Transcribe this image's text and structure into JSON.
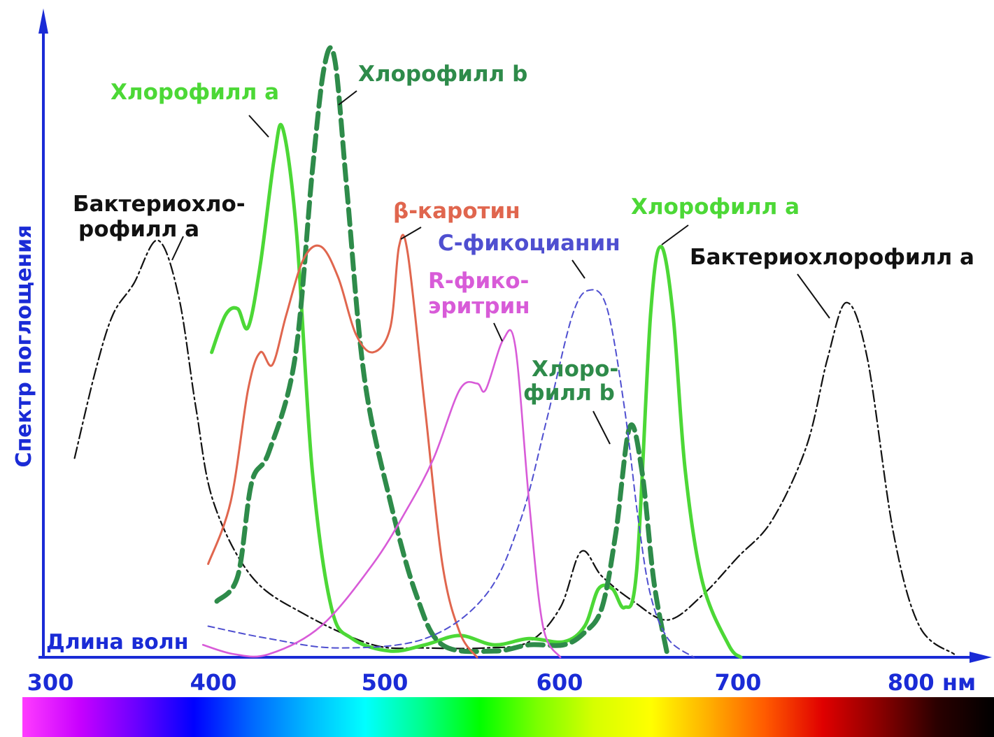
{
  "chart_data": {
    "type": "line",
    "xlabel": "Длина волн",
    "ylabel": "Спектр поглощения",
    "x_unit": "нм",
    "xlim": [
      300,
      850
    ],
    "ylim": [
      0,
      100
    ],
    "x_ticks": [
      "300",
      "400",
      "500",
      "600",
      "700",
      "800 нм"
    ],
    "colors": {
      "axis": "#1a2bd6",
      "chl_a": "#4cd836",
      "chl_b": "#2e8b4a",
      "carotene": "#e0664e",
      "phycoerythrin": "#d85bd8",
      "phycocyanin": "#4f4fd0",
      "bchl": "#111111"
    },
    "series": [
      {
        "key": "bchl",
        "style": "dashdot",
        "points": [
          [
            318,
            32
          ],
          [
            330,
            46
          ],
          [
            340,
            55
          ],
          [
            352,
            60
          ],
          [
            366,
            67
          ],
          [
            378,
            58
          ],
          [
            388,
            40
          ],
          [
            398,
            25
          ],
          [
            420,
            13
          ],
          [
            450,
            7
          ],
          [
            490,
            2
          ],
          [
            520,
            1.5
          ],
          [
            555,
            1.5
          ],
          [
            580,
            2.5
          ],
          [
            598,
            8
          ],
          [
            610,
            17
          ],
          [
            622,
            13
          ],
          [
            640,
            9
          ],
          [
            660,
            6
          ],
          [
            680,
            10
          ],
          [
            700,
            16
          ],
          [
            720,
            22
          ],
          [
            740,
            34
          ],
          [
            752,
            48
          ],
          [
            763,
            57
          ],
          [
            775,
            48
          ],
          [
            790,
            20
          ],
          [
            805,
            5
          ],
          [
            825,
            0.5
          ]
        ]
      },
      {
        "key": "chl_a",
        "style": "solid",
        "points": [
          [
            397,
            49
          ],
          [
            405,
            55
          ],
          [
            412,
            56
          ],
          [
            418,
            53
          ],
          [
            425,
            63
          ],
          [
            433,
            80
          ],
          [
            438,
            85
          ],
          [
            446,
            68
          ],
          [
            455,
            30
          ],
          [
            466,
            8
          ],
          [
            478,
            3
          ],
          [
            500,
            1
          ],
          [
            520,
            2
          ],
          [
            540,
            3.5
          ],
          [
            560,
            2
          ],
          [
            580,
            3
          ],
          [
            600,
            2.5
          ],
          [
            612,
            5
          ],
          [
            620,
            11
          ],
          [
            628,
            11
          ],
          [
            635,
            8
          ],
          [
            642,
            14
          ],
          [
            650,
            55
          ],
          [
            656,
            66
          ],
          [
            663,
            55
          ],
          [
            670,
            30
          ],
          [
            680,
            12
          ],
          [
            695,
            2
          ],
          [
            702,
            0
          ]
        ]
      },
      {
        "key": "chl_b",
        "style": "dashed",
        "points": [
          [
            400,
            9
          ],
          [
            412,
            13
          ],
          [
            420,
            28
          ],
          [
            430,
            33
          ],
          [
            445,
            48
          ],
          [
            455,
            78
          ],
          [
            462,
            95
          ],
          [
            468,
            96
          ],
          [
            475,
            75
          ],
          [
            485,
            45
          ],
          [
            500,
            25
          ],
          [
            515,
            10
          ],
          [
            530,
            2
          ],
          [
            560,
            1
          ],
          [
            580,
            2
          ],
          [
            600,
            2
          ],
          [
            612,
            4
          ],
          [
            622,
            8
          ],
          [
            630,
            20
          ],
          [
            638,
            37
          ],
          [
            645,
            30
          ],
          [
            652,
            12
          ],
          [
            660,
            0
          ]
        ]
      },
      {
        "key": "carotene",
        "style": "solid",
        "points": [
          [
            395,
            15
          ],
          [
            408,
            25
          ],
          [
            418,
            43
          ],
          [
            425,
            49
          ],
          [
            432,
            47
          ],
          [
            440,
            55
          ],
          [
            450,
            64
          ],
          [
            460,
            66
          ],
          [
            470,
            61
          ],
          [
            480,
            52
          ],
          [
            490,
            49
          ],
          [
            500,
            53
          ],
          [
            505,
            66
          ],
          [
            510,
            65
          ],
          [
            520,
            40
          ],
          [
            530,
            15
          ],
          [
            540,
            4
          ],
          [
            550,
            0
          ]
        ]
      },
      {
        "key": "phycocyanin",
        "style": "thin-dash",
        "points": [
          [
            395,
            5
          ],
          [
            430,
            3
          ],
          [
            470,
            1.5
          ],
          [
            520,
            3
          ],
          [
            555,
            10
          ],
          [
            575,
            22
          ],
          [
            590,
            38
          ],
          [
            605,
            55
          ],
          [
            615,
            59
          ],
          [
            625,
            56
          ],
          [
            635,
            40
          ],
          [
            643,
            22
          ],
          [
            650,
            10
          ],
          [
            660,
            3
          ],
          [
            675,
            0
          ]
        ]
      },
      {
        "key": "phycoerythrin",
        "style": "solid",
        "points": [
          [
            392,
            2
          ],
          [
            410,
            0.5
          ],
          [
            430,
            0.5
          ],
          [
            460,
            5
          ],
          [
            490,
            15
          ],
          [
            510,
            24
          ],
          [
            525,
            32
          ],
          [
            540,
            43
          ],
          [
            550,
            44
          ],
          [
            555,
            43
          ],
          [
            565,
            51
          ],
          [
            572,
            50
          ],
          [
            580,
            25
          ],
          [
            588,
            5
          ],
          [
            598,
            0
          ]
        ]
      }
    ],
    "labels": {
      "chl_a_1": "Хлорофилл а",
      "chl_b_1": "Хлорофилл b",
      "bchl_1_l1": "Бактериохло-",
      "bchl_1_l2": "рофилл а",
      "carotene": "β-каротин",
      "phycocyanin": "С-фикоцианин",
      "phycoerythrin_l1": "R-фико-",
      "phycoerythrin_l2": "эритрин",
      "chl_b_2_l1": "Хлоро-",
      "chl_b_2_l2": "филл b",
      "chl_a_2": "Хлорофилл а",
      "bchl_2": "Бактериохлорофилл а"
    },
    "spectrum_bar": [
      "#ff3cff",
      "#c800ff",
      "#6a00ff",
      "#0000ff",
      "#0066ff",
      "#00b8ff",
      "#00ffff",
      "#00ff8c",
      "#00ff00",
      "#7aff00",
      "#d6ff00",
      "#ffff00",
      "#ffb000",
      "#ff5a00",
      "#e00000",
      "#8a0000",
      "#2a0000",
      "#000000"
    ]
  }
}
